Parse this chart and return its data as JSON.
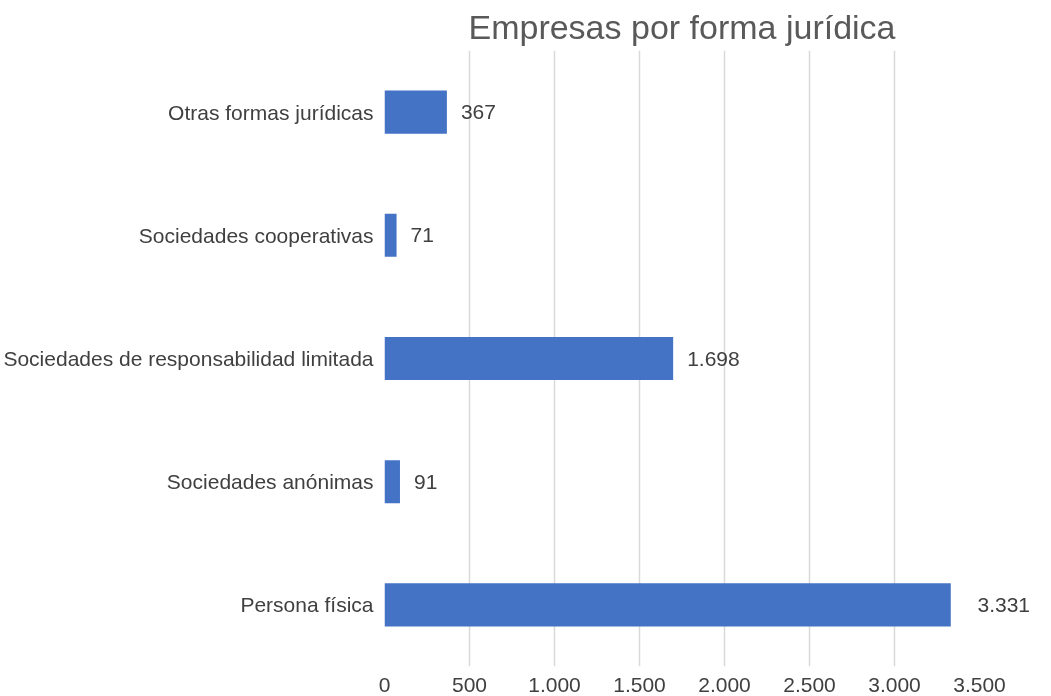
{
  "chart_data": {
    "type": "bar",
    "orientation": "horizontal",
    "title": "Empresas por forma jurídica",
    "categories": [
      "Otras formas jurídicas",
      "Sociedades cooperativas",
      "Sociedades de responsabilidad limitada",
      "Sociedades anónimas",
      "Persona física"
    ],
    "values": [
      367,
      71,
      1698,
      91,
      3331
    ],
    "value_labels": [
      "367",
      "71",
      "1.698",
      "91",
      "3.331"
    ],
    "color": "#4472c4",
    "xlim": [
      0,
      3500
    ],
    "xticks": [
      0,
      500,
      {
        "value": 1000,
        "label": "1.000"
      },
      {
        "value": 1500,
        "label": "1.500"
      },
      {
        "value": 2000,
        "label": "2.000"
      },
      {
        "value": 2500,
        "label": "2.500"
      },
      {
        "value": 3000,
        "label": "3.000"
      },
      {
        "value": 3500,
        "label": "3.500"
      }
    ],
    "grid": "x"
  }
}
